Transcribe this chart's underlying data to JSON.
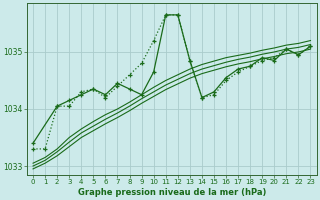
{
  "title": "Graphe pression niveau de la mer (hPa)",
  "bg_color": "#cceaea",
  "grid_color": "#aacccc",
  "line_color": "#1a6b1a",
  "xlim": [
    -0.5,
    23.5
  ],
  "ylim": [
    1032.85,
    1035.85
  ],
  "yticks": [
    1033,
    1034,
    1035
  ],
  "xticks": [
    0,
    1,
    2,
    3,
    4,
    5,
    6,
    7,
    8,
    9,
    10,
    11,
    12,
    13,
    14,
    15,
    16,
    17,
    18,
    19,
    20,
    21,
    22,
    23
  ],
  "series": [
    {
      "x": [
        0,
        1,
        2,
        3,
        4,
        5,
        6,
        7,
        8,
        9,
        10,
        11,
        12,
        13,
        14,
        15,
        16,
        17,
        18,
        19,
        20,
        21,
        22,
        23
      ],
      "y": [
        1033.3,
        1033.3,
        1034.05,
        1034.05,
        1034.3,
        1034.35,
        1034.2,
        1034.4,
        1034.6,
        1034.8,
        1035.2,
        1035.65,
        1035.65,
        1034.85,
        1034.2,
        1034.25,
        1034.5,
        1034.65,
        1034.75,
        1034.85,
        1034.9,
        1035.05,
        1034.95,
        1035.1
      ],
      "style": "dotted_marker"
    },
    {
      "x": [
        0,
        2,
        3,
        4,
        5,
        6,
        7,
        8,
        9,
        10,
        11,
        12,
        13,
        14,
        15,
        16,
        17,
        18,
        19,
        20,
        21,
        22,
        23
      ],
      "y": [
        1033.4,
        1034.05,
        1034.15,
        1034.25,
        1034.35,
        1034.25,
        1034.45,
        1034.35,
        1034.25,
        1034.65,
        1035.65,
        1035.65,
        1034.85,
        1034.2,
        1034.3,
        1034.55,
        1034.7,
        1034.75,
        1034.9,
        1034.85,
        1035.05,
        1034.95,
        1035.1
      ],
      "style": "solid_marker"
    },
    {
      "x": [
        0,
        1,
        2,
        3,
        4,
        5,
        6,
        7,
        8,
        9,
        10,
        11,
        12,
        13,
        14,
        15,
        16,
        17,
        18,
        19,
        20,
        21,
        22,
        23
      ],
      "y": [
        1033.05,
        1033.15,
        1033.3,
        1033.5,
        1033.65,
        1033.78,
        1033.9,
        1034.0,
        1034.12,
        1034.25,
        1034.38,
        1034.5,
        1034.6,
        1034.7,
        1034.78,
        1034.84,
        1034.9,
        1034.94,
        1034.98,
        1035.03,
        1035.07,
        1035.12,
        1035.15,
        1035.2
      ],
      "style": "smooth"
    },
    {
      "x": [
        0,
        1,
        2,
        3,
        4,
        5,
        6,
        7,
        8,
        9,
        10,
        11,
        12,
        13,
        14,
        15,
        16,
        17,
        18,
        19,
        20,
        21,
        22,
        23
      ],
      "y": [
        1033.0,
        1033.1,
        1033.25,
        1033.42,
        1033.58,
        1033.7,
        1033.82,
        1033.93,
        1034.05,
        1034.18,
        1034.3,
        1034.42,
        1034.52,
        1034.62,
        1034.7,
        1034.76,
        1034.82,
        1034.87,
        1034.91,
        1034.96,
        1035.0,
        1035.05,
        1035.08,
        1035.13
      ],
      "style": "smooth"
    },
    {
      "x": [
        0,
        1,
        2,
        3,
        4,
        5,
        6,
        7,
        8,
        9,
        10,
        11,
        12,
        13,
        14,
        15,
        16,
        17,
        18,
        19,
        20,
        21,
        22,
        23
      ],
      "y": [
        1032.95,
        1033.05,
        1033.18,
        1033.34,
        1033.5,
        1033.62,
        1033.74,
        1033.85,
        1033.97,
        1034.1,
        1034.22,
        1034.34,
        1034.44,
        1034.54,
        1034.62,
        1034.68,
        1034.74,
        1034.79,
        1034.83,
        1034.88,
        1034.92,
        1034.97,
        1035.0,
        1035.05
      ],
      "style": "smooth"
    }
  ]
}
